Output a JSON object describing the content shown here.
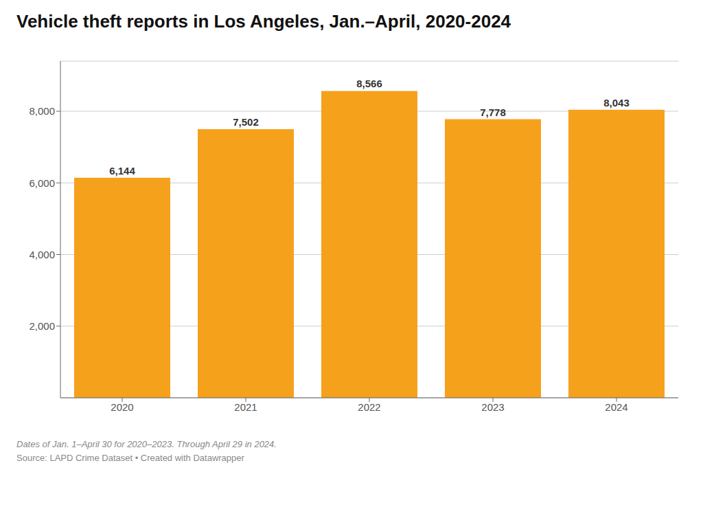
{
  "chart_data": {
    "type": "bar",
    "title": "Vehicle theft reports in Los Angeles, Jan.–April, 2020-2024",
    "categories": [
      "2020",
      "2021",
      "2022",
      "2023",
      "2024"
    ],
    "values": [
      6144,
      7502,
      8566,
      7778,
      8043
    ],
    "value_labels": [
      "6,144",
      "7,502",
      "8,566",
      "7,778",
      "8,043"
    ],
    "data_labels": true,
    "color": "#F5A11C",
    "ylim": [
      0,
      9400
    ],
    "yticks": [
      {
        "value": 2000,
        "label": "2,000"
      },
      {
        "value": 4000,
        "label": "4,000"
      },
      {
        "value": 6000,
        "label": "6,000"
      },
      {
        "value": 8000,
        "label": "8,000"
      }
    ],
    "grid": true,
    "annotations": [
      "Dates of Jan. 1–April 30 for 2020–2023. Through April 29 in 2024.",
      "Source: LAPD Crime Dataset • Created with Datawrapper"
    ]
  }
}
